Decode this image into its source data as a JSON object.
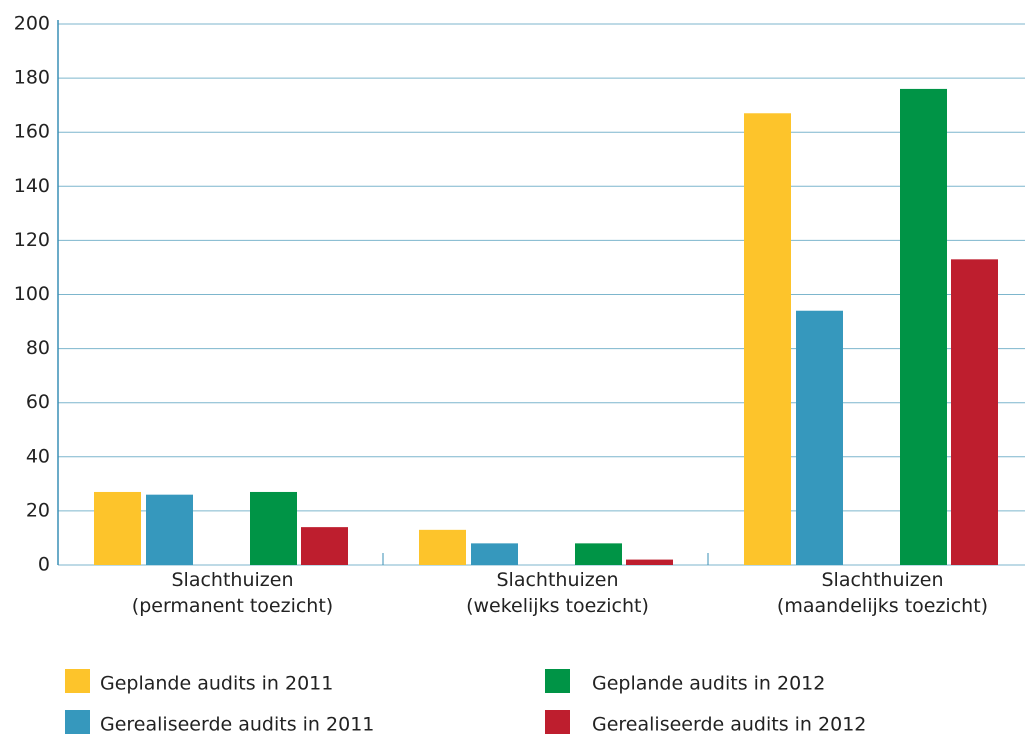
{
  "chart_data": {
    "type": "bar",
    "categories": [
      "Slachthuizen\n(permanent toezicht)",
      "Slachthuizen\n(wekelijks toezicht)",
      "Slachthuizen\n(maandelijks toezicht)"
    ],
    "series": [
      {
        "name": "Geplande audits in 2011",
        "color": "#fdc42b",
        "values": [
          27,
          13,
          167
        ]
      },
      {
        "name": "Gerealiseerde audits in 2011",
        "color": "#3698bd",
        "values": [
          26,
          8,
          94
        ]
      },
      {
        "name": "Geplande audits in 2012",
        "color": "#009446",
        "values": [
          27,
          8,
          176
        ]
      },
      {
        "name": "Gerealiseerde audits in 2012",
        "color": "#be1e2e",
        "values": [
          14,
          2,
          113
        ]
      }
    ],
    "ylim": [
      0,
      200
    ],
    "yticks": [
      0,
      20,
      40,
      60,
      80,
      100,
      120,
      140,
      160,
      180,
      200
    ],
    "grid": true
  }
}
